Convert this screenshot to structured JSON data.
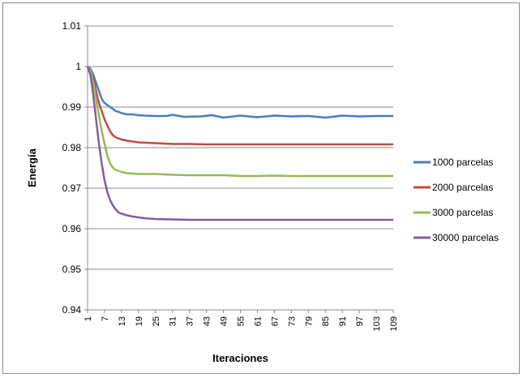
{
  "chart_data": {
    "type": "line",
    "title": "",
    "xlabel": "Iteraciones",
    "ylabel": "Energía",
    "ylim": [
      0.94,
      1.01
    ],
    "yticks": [
      "0.94",
      "0.95",
      "0.96",
      "0.97",
      "0.98",
      "0.99",
      "1",
      "1.01"
    ],
    "xticks": [
      "1",
      "7",
      "13",
      "19",
      "25",
      "31",
      "37",
      "43",
      "49",
      "55",
      "61",
      "67",
      "73",
      "79",
      "85",
      "91",
      "97",
      "103",
      "109"
    ],
    "x_range": [
      1,
      109
    ],
    "grid": "horizontal",
    "legend_position": "right",
    "series": [
      {
        "name": "1000 parcelas",
        "color": "#4a7ebb",
        "values": [
          [
            1,
            1.0
          ],
          [
            2,
            0.9995
          ],
          [
            3,
            0.998
          ],
          [
            4,
            0.996
          ],
          [
            5,
            0.994
          ],
          [
            6,
            0.992
          ],
          [
            7,
            0.991
          ],
          [
            8,
            0.9905
          ],
          [
            9,
            0.99
          ],
          [
            10,
            0.9895
          ],
          [
            11,
            0.989
          ],
          [
            12,
            0.9888
          ],
          [
            13,
            0.9885
          ],
          [
            15,
            0.9882
          ],
          [
            17,
            0.9882
          ],
          [
            19,
            0.988
          ],
          [
            21,
            0.9879
          ],
          [
            25,
            0.9878
          ],
          [
            29,
            0.9878
          ],
          [
            31,
            0.9881
          ],
          [
            35,
            0.9876
          ],
          [
            41,
            0.9877
          ],
          [
            45,
            0.988
          ],
          [
            49,
            0.9874
          ],
          [
            55,
            0.9879
          ],
          [
            61,
            0.9875
          ],
          [
            67,
            0.9879
          ],
          [
            73,
            0.9877
          ],
          [
            79,
            0.9878
          ],
          [
            85,
            0.9874
          ],
          [
            91,
            0.9879
          ],
          [
            97,
            0.9877
          ],
          [
            103,
            0.9878
          ],
          [
            109,
            0.9878
          ]
        ]
      },
      {
        "name": "2000 parcelas",
        "color": "#be4b48",
        "values": [
          [
            1,
            1.0
          ],
          [
            2,
            0.999
          ],
          [
            3,
            0.997
          ],
          [
            4,
            0.994
          ],
          [
            5,
            0.991
          ],
          [
            6,
            0.989
          ],
          [
            7,
            0.987
          ],
          [
            8,
            0.9855
          ],
          [
            9,
            0.984
          ],
          [
            10,
            0.983
          ],
          [
            11,
            0.9825
          ],
          [
            13,
            0.982
          ],
          [
            15,
            0.9817
          ],
          [
            19,
            0.9813
          ],
          [
            25,
            0.9811
          ],
          [
            31,
            0.9809
          ],
          [
            37,
            0.9809
          ],
          [
            43,
            0.9808
          ],
          [
            49,
            0.9808
          ],
          [
            55,
            0.9808
          ],
          [
            61,
            0.9808
          ],
          [
            67,
            0.9808
          ],
          [
            73,
            0.9808
          ],
          [
            79,
            0.9808
          ],
          [
            85,
            0.9808
          ],
          [
            91,
            0.9808
          ],
          [
            97,
            0.9808
          ],
          [
            103,
            0.9808
          ],
          [
            109,
            0.9808
          ]
        ]
      },
      {
        "name": "3000 parcelas",
        "color": "#98b954",
        "values": [
          [
            1,
            1.0
          ],
          [
            2,
            0.999
          ],
          [
            3,
            0.996
          ],
          [
            4,
            0.992
          ],
          [
            5,
            0.988
          ],
          [
            6,
            0.984
          ],
          [
            7,
            0.981
          ],
          [
            8,
            0.978
          ],
          [
            9,
            0.976
          ],
          [
            10,
            0.975
          ],
          [
            11,
            0.9745
          ],
          [
            13,
            0.974
          ],
          [
            15,
            0.9737
          ],
          [
            19,
            0.9735
          ],
          [
            25,
            0.9735
          ],
          [
            31,
            0.9733
          ],
          [
            37,
            0.9732
          ],
          [
            43,
            0.9732
          ],
          [
            49,
            0.9732
          ],
          [
            55,
            0.973
          ],
          [
            61,
            0.973
          ],
          [
            67,
            0.9731
          ],
          [
            73,
            0.973
          ],
          [
            79,
            0.973
          ],
          [
            85,
            0.973
          ],
          [
            91,
            0.973
          ],
          [
            97,
            0.973
          ],
          [
            103,
            0.973
          ],
          [
            109,
            0.973
          ]
        ]
      },
      {
        "name": "30000 parcelas",
        "color": "#7d60a0",
        "values": [
          [
            1,
            1.0
          ],
          [
            2,
            0.998
          ],
          [
            3,
            0.993
          ],
          [
            4,
            0.987
          ],
          [
            5,
            0.981
          ],
          [
            6,
            0.976
          ],
          [
            7,
            0.972
          ],
          [
            8,
            0.969
          ],
          [
            9,
            0.967
          ],
          [
            10,
            0.9657
          ],
          [
            11,
            0.9647
          ],
          [
            12,
            0.964
          ],
          [
            13,
            0.9637
          ],
          [
            15,
            0.9633
          ],
          [
            17,
            0.963
          ],
          [
            19,
            0.9628
          ],
          [
            21,
            0.9626
          ],
          [
            25,
            0.9624
          ],
          [
            31,
            0.9623
          ],
          [
            37,
            0.9622
          ],
          [
            49,
            0.9622
          ],
          [
            61,
            0.9622
          ],
          [
            73,
            0.9622
          ],
          [
            85,
            0.9622
          ],
          [
            97,
            0.9622
          ],
          [
            109,
            0.9622
          ]
        ]
      }
    ]
  }
}
